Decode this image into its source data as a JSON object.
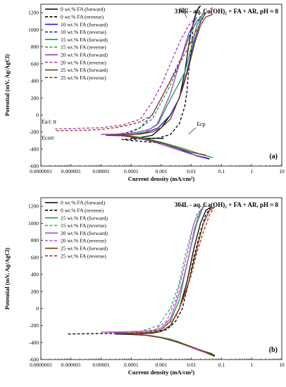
{
  "chart_data": [
    {
      "type": "line",
      "title": "316L - aq. Ca(OH)₂ + FA + AR, pH ≈ 8",
      "panel_label": "(a)",
      "xlabel": "Current density (mA/cm²)",
      "ylabel": "Potential (mV, Ag/AgCl)",
      "x_scale": "log",
      "xlim": [
        1e-07,
        10
      ],
      "ylim": [
        -600,
        1300
      ],
      "x_tick_labels": [
        "0.0000001",
        "0.000001",
        "0.00001",
        "0.0001",
        "0.001",
        "0.01",
        "0.1",
        "1",
        "10"
      ],
      "y_tick_labels": [
        "-600",
        "-400",
        "-200",
        "0",
        "200",
        "400",
        "600",
        "800",
        "1000",
        "1200"
      ],
      "grid": false,
      "legend_position": "top-left",
      "annotations": [
        "Eb2",
        "Ea/c tr",
        "Ecorr",
        "Ecp"
      ],
      "series": [
        {
          "name": "0 wt.% FA (forward)",
          "color": "#000000",
          "dash": "solid",
          "x": [
            0.0012,
            0.0005,
            0.0002,
            0.00012,
            0.0001,
            0.0002,
            0.0005,
            0.001,
            0.002,
            0.004,
            0.006,
            0.008,
            0.01,
            0.013,
            0.016,
            0.02
          ],
          "y": [
            -275,
            -274,
            -272,
            -271,
            -270,
            -265,
            -240,
            -150,
            0,
            200,
            500,
            800,
            1000,
            1150,
            1240,
            1280
          ]
        },
        {
          "name": "0 wt.% FA (reverse)",
          "color": "#000000",
          "dash": "dashed",
          "x": [
            0.02,
            0.016,
            0.012,
            0.01,
            0.008,
            0.007,
            0.006,
            0.004,
            0.002,
            0.0008,
            0.0003,
            0.0001,
            5e-05,
            0.0001,
            0.0005,
            0.001
          ],
          "y": [
            1280,
            1250,
            1100,
            800,
            500,
            250,
            100,
            -100,
            -230,
            -270,
            -280,
            -285,
            -288,
            -300,
            -320,
            -330
          ]
        },
        {
          "name": "10 wt.% FA (forward)",
          "color": "#1c1cd4",
          "dash": "solid",
          "x": [
            0.04,
            0.015,
            0.004,
            0.001,
            0.0003,
            5e-05,
            1.5e-05,
            3e-05,
            0.0001,
            0.0003,
            0.0008,
            0.002,
            0.004,
            0.007,
            0.012,
            0.02,
            0.03
          ],
          "y": [
            -520,
            -480,
            -400,
            -330,
            -280,
            -245,
            -240,
            -238,
            -230,
            -210,
            -150,
            0,
            200,
            500,
            850,
            1100,
            1200
          ]
        },
        {
          "name": "10 wt.% FA (reverse)",
          "color": "#1c1cd4",
          "dash": "dashed",
          "x": [
            0.03,
            0.02,
            0.01,
            0.005,
            0.002,
            0.001,
            0.0005,
            0.0002,
            0.0001,
            3e-05
          ],
          "y": [
            1200,
            1150,
            1000,
            700,
            400,
            200,
            0,
            -150,
            -200,
            -230
          ]
        },
        {
          "name": "15 wt.% FA (forward)",
          "color": "#14a03a",
          "dash": "solid",
          "x": [
            0.05,
            0.02,
            0.005,
            0.001,
            0.0003,
            8e-05,
            3e-05,
            0.0001,
            0.0003,
            0.0008,
            0.0015,
            0.003,
            0.006,
            0.01,
            0.015,
            0.025
          ],
          "y": [
            -500,
            -460,
            -390,
            -320,
            -275,
            -240,
            -230,
            -228,
            -200,
            -100,
            100,
            300,
            500,
            800,
            1050,
            1200
          ]
        },
        {
          "name": "15 wt.% FA (reverse)",
          "color": "#14a03a",
          "dash": "dashed",
          "x": [
            0.025,
            0.015,
            0.008,
            0.004,
            0.002,
            0.001,
            0.0005,
            0.0002,
            8e-05
          ],
          "y": [
            1200,
            1100,
            900,
            600,
            350,
            150,
            -50,
            -150,
            -200
          ]
        },
        {
          "name": "20 wt.% FA (forward)",
          "color": "#a040c0",
          "dash": "solid",
          "x": [
            0.04,
            0.01,
            0.002,
            0.0005,
            0.0001,
            3e-05,
            1e-05,
            3e-05,
            0.0001,
            0.0002,
            0.0004,
            0.0007,
            0.001,
            0.002,
            0.004,
            0.008,
            0.015
          ],
          "y": [
            -510,
            -460,
            -380,
            -310,
            -260,
            -235,
            -228,
            -225,
            -215,
            -195,
            -170,
            -120,
            0,
            250,
            600,
            950,
            1150
          ]
        },
        {
          "name": "20 wt.% FA (reverse)",
          "color": "#a040c0",
          "dash": "dashed",
          "x": [
            0.015,
            0.008,
            0.004,
            0.002,
            0.001,
            0.0005,
            0.0002,
            5e-05,
            1e-05,
            3e-07
          ],
          "y": [
            1150,
            1050,
            850,
            600,
            350,
            150,
            -50,
            -120,
            -150,
            -165
          ]
        },
        {
          "name": "25 wt.% FA (forward)",
          "color": "#7a3a12",
          "dash": "solid",
          "x": [
            0.03,
            0.01,
            0.003,
            0.0008,
            0.0002,
            5e-05,
            2e-05,
            5e-05,
            0.0002,
            0.0005,
            0.001,
            0.002,
            0.003,
            0.005,
            0.008,
            0.013,
            0.02,
            0.03,
            0.05
          ],
          "y": [
            -470,
            -440,
            -380,
            -320,
            -270,
            -240,
            -235,
            -232,
            -225,
            -200,
            -150,
            -50,
            100,
            300,
            550,
            850,
            1050,
            1150,
            1180
          ]
        },
        {
          "name": "25 wt.% FA (reverse)",
          "color": "#b02a1a",
          "dash": "dashed",
          "x": [
            0.05,
            0.03,
            0.015,
            0.008,
            0.004,
            0.002,
            0.001,
            0.0005,
            0.0002,
            8e-05,
            3e-05,
            1e-05,
            3e-06,
            3e-07
          ],
          "y": [
            1260,
            1200,
            1000,
            800,
            600,
            400,
            200,
            0,
            -80,
            -120,
            -150,
            -170,
            -180,
            -185
          ]
        }
      ]
    },
    {
      "type": "line",
      "title": "304L - aq. Ca(OH)₂ + FA + AR, pH ≈ 8",
      "panel_label": "(b)",
      "xlabel": "Current density (mA/cm²)",
      "ylabel": "Potential (mV, Ag/AgCl)",
      "x_scale": "log",
      "xlim": [
        1e-07,
        10
      ],
      "ylim": [
        -600,
        1300
      ],
      "x_tick_labels": [
        "0.0000001",
        "0.000001",
        "0.00001",
        "0.0001",
        "0.001",
        "0.01",
        "0.1",
        "1",
        "10"
      ],
      "y_tick_labels": [
        "-600",
        "-400",
        "-200",
        "0",
        "200",
        "400",
        "600",
        "800",
        "1000",
        "1200"
      ],
      "grid": false,
      "legend_position": "top-left",
      "series": [
        {
          "name": "0 wt.% FA (forward)",
          "color": "#000000",
          "dash": "solid",
          "x": [
            0.06,
            0.03,
            0.01,
            0.003,
            0.001,
            0.0003,
            0.0001,
            3e-05,
            0.0001,
            0.0005,
            0.001,
            0.002,
            0.004,
            0.007,
            0.012,
            0.02,
            0.03,
            0.045
          ],
          "y": [
            -560,
            -520,
            -450,
            -380,
            -340,
            -315,
            -305,
            -300,
            -298,
            -290,
            -270,
            -200,
            0,
            300,
            700,
            1000,
            1150,
            1190
          ]
        },
        {
          "name": "0 wt.% FA (reverse)",
          "color": "#000000",
          "dash": "dashed",
          "x": [
            0.045,
            0.03,
            0.02,
            0.012,
            0.008,
            0.005,
            0.003,
            0.0015,
            0.0005,
            0.0001,
            1e-05,
            8e-07
          ],
          "y": [
            1190,
            1100,
            900,
            600,
            300,
            0,
            -150,
            -250,
            -280,
            -290,
            -295,
            -300
          ]
        },
        {
          "name": "15 wt.% FA (forward)",
          "color": "#14a03a",
          "dash": "solid",
          "x": [
            0.05,
            0.02,
            0.006,
            0.002,
            0.0005,
            0.0001,
            3e-05,
            0.0001,
            0.0005,
            0.001,
            0.002,
            0.004,
            0.006,
            0.01,
            0.015,
            0.025
          ],
          "y": [
            -530,
            -490,
            -420,
            -360,
            -320,
            -300,
            -295,
            -290,
            -280,
            -250,
            -150,
            100,
            400,
            750,
            1000,
            1200
          ]
        },
        {
          "name": "15 wt.% FA (reverse)",
          "color": "#33b55a",
          "dash": "dashed",
          "x": [
            0.025,
            0.015,
            0.01,
            0.006,
            0.004,
            0.002,
            0.0008,
            0.0002,
            3e-05
          ],
          "y": [
            1200,
            1100,
            900,
            600,
            300,
            0,
            -200,
            -270,
            -280
          ]
        },
        {
          "name": "20 wt.% FA (forward)",
          "color": "#b050d0",
          "dash": "solid",
          "x": [
            0.05,
            0.02,
            0.006,
            0.002,
            0.0005,
            0.0001,
            3e-05,
            1e-05,
            3e-05,
            0.0001,
            0.0005,
            0.001,
            0.002,
            0.003,
            0.005,
            0.008,
            0.013,
            0.02,
            0.03
          ],
          "y": [
            -540,
            -500,
            -430,
            -370,
            -320,
            -290,
            -280,
            -278,
            -276,
            -272,
            -260,
            -230,
            -120,
            50,
            300,
            600,
            950,
            1150,
            1220
          ]
        },
        {
          "name": "20 wt.% FA (reverse)",
          "color": "#b050d0",
          "dash": "dashed",
          "x": [
            0.03,
            0.02,
            0.012,
            0.008,
            0.005,
            0.003,
            0.0015,
            0.0006,
            0.0002,
            5e-05,
            1.5e-05
          ],
          "y": [
            1220,
            1150,
            1000,
            700,
            400,
            100,
            -150,
            -250,
            -270,
            -275,
            -278
          ]
        },
        {
          "name": "25 wt.% FA (forward)",
          "color": "#7a3a12",
          "dash": "solid",
          "x": [
            0.06,
            0.03,
            0.01,
            0.003,
            0.001,
            0.0003,
            0.0001,
            3e-05,
            0.0001,
            0.0005,
            0.001,
            0.002,
            0.004,
            0.008,
            0.015,
            0.025,
            0.04,
            0.06
          ],
          "y": [
            -550,
            -510,
            -450,
            -390,
            -345,
            -315,
            -300,
            -292,
            -290,
            -285,
            -270,
            -200,
            0,
            300,
            700,
            1000,
            1150,
            1200
          ]
        },
        {
          "name": "25 wt.% FA (reverse)",
          "color": "#b02a1a",
          "dash": "dashed",
          "x": [
            0.06,
            0.04,
            0.025,
            0.015,
            0.01,
            0.006,
            0.003,
            0.001,
            0.0003,
            0.0001
          ],
          "y": [
            1200,
            1100,
            900,
            650,
            400,
            150,
            -100,
            -250,
            -280,
            -285
          ]
        }
      ]
    }
  ]
}
